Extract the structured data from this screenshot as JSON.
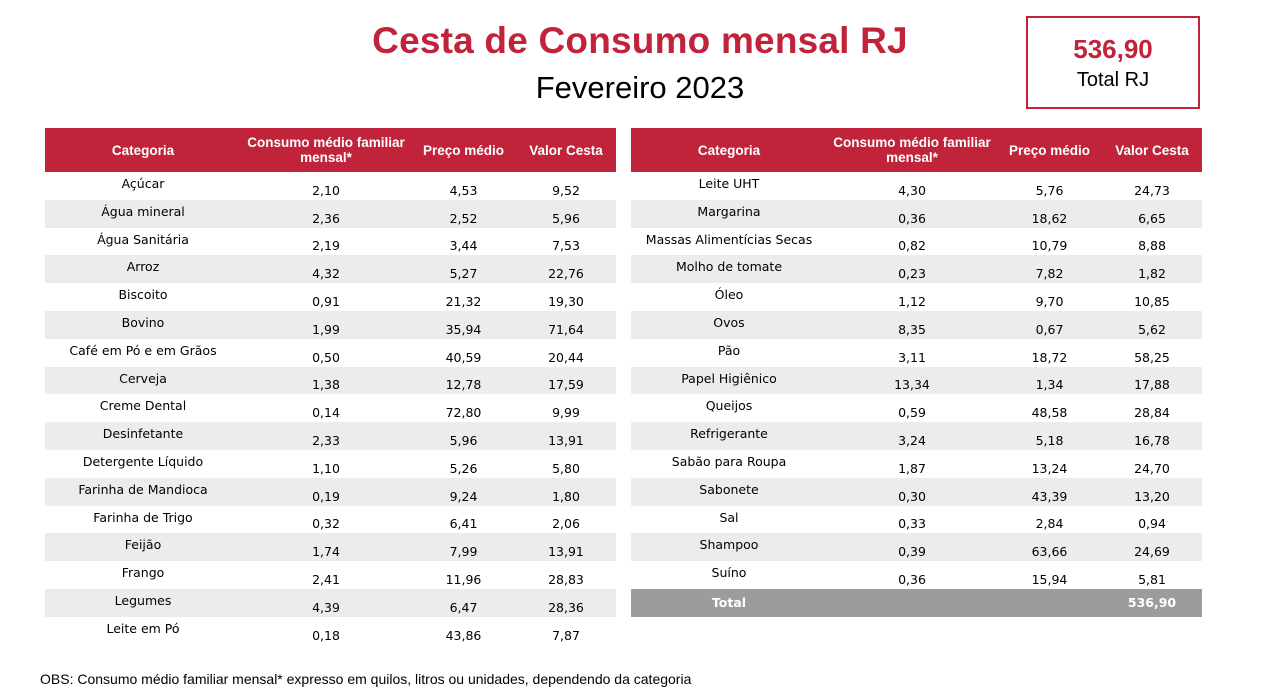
{
  "header": {
    "title": "Cesta de Consumo mensal RJ",
    "subtitle": "Fevereiro 2023"
  },
  "total_box": {
    "value": "536,90",
    "label": "Total RJ"
  },
  "columns": {
    "categoria": "Categoria",
    "consumo": "Consumo  médio familiar mensal*",
    "preco": "Preço médio",
    "valor": "Valor Cesta"
  },
  "left_table": [
    {
      "categoria": "Açúcar",
      "consumo": "2,10",
      "preco": "4,53",
      "valor": "9,52"
    },
    {
      "categoria": "Água mineral",
      "consumo": "2,36",
      "preco": "2,52",
      "valor": "5,96"
    },
    {
      "categoria": "Água Sanitária",
      "consumo": "2,19",
      "preco": "3,44",
      "valor": "7,53"
    },
    {
      "categoria": "Arroz",
      "consumo": "4,32",
      "preco": "5,27",
      "valor": "22,76"
    },
    {
      "categoria": "Biscoito",
      "consumo": "0,91",
      "preco": "21,32",
      "valor": "19,30"
    },
    {
      "categoria": "Bovino",
      "consumo": "1,99",
      "preco": "35,94",
      "valor": "71,64"
    },
    {
      "categoria": "Café em Pó e em Grãos",
      "consumo": "0,50",
      "preco": "40,59",
      "valor": "20,44"
    },
    {
      "categoria": "Cerveja",
      "consumo": "1,38",
      "preco": "12,78",
      "valor": "17,59"
    },
    {
      "categoria": "Creme Dental",
      "consumo": "0,14",
      "preco": "72,80",
      "valor": "9,99"
    },
    {
      "categoria": "Desinfetante",
      "consumo": "2,33",
      "preco": "5,96",
      "valor": "13,91"
    },
    {
      "categoria": "Detergente Líquido",
      "consumo": "1,10",
      "preco": "5,26",
      "valor": "5,80"
    },
    {
      "categoria": "Farinha de Mandioca",
      "consumo": "0,19",
      "preco": "9,24",
      "valor": "1,80"
    },
    {
      "categoria": "Farinha de Trigo",
      "consumo": "0,32",
      "preco": "6,41",
      "valor": "2,06"
    },
    {
      "categoria": "Feijão",
      "consumo": "1,74",
      "preco": "7,99",
      "valor": "13,91"
    },
    {
      "categoria": "Frango",
      "consumo": "2,41",
      "preco": "11,96",
      "valor": "28,83"
    },
    {
      "categoria": "Legumes",
      "consumo": "4,39",
      "preco": "6,47",
      "valor": "28,36"
    },
    {
      "categoria": "Leite em Pó",
      "consumo": "0,18",
      "preco": "43,86",
      "valor": "7,87"
    }
  ],
  "right_table": [
    {
      "categoria": "Leite UHT",
      "consumo": "4,30",
      "preco": "5,76",
      "valor": "24,73"
    },
    {
      "categoria": "Margarina",
      "consumo": "0,36",
      "preco": "18,62",
      "valor": "6,65"
    },
    {
      "categoria": "Massas Alimentícias Secas",
      "consumo": "0,82",
      "preco": "10,79",
      "valor": "8,88"
    },
    {
      "categoria": "Molho de tomate",
      "consumo": "0,23",
      "preco": "7,82",
      "valor": "1,82"
    },
    {
      "categoria": "Óleo",
      "consumo": "1,12",
      "preco": "9,70",
      "valor": "10,85"
    },
    {
      "categoria": "Ovos",
      "consumo": "8,35",
      "preco": "0,67",
      "valor": "5,62"
    },
    {
      "categoria": "Pão",
      "consumo": "3,11",
      "preco": "18,72",
      "valor": "58,25"
    },
    {
      "categoria": "Papel Higiênico",
      "consumo": "13,34",
      "preco": "1,34",
      "valor": "17,88"
    },
    {
      "categoria": "Queijos",
      "consumo": "0,59",
      "preco": "48,58",
      "valor": "28,84"
    },
    {
      "categoria": "Refrigerante",
      "consumo": "3,24",
      "preco": "5,18",
      "valor": "16,78"
    },
    {
      "categoria": "Sabão para Roupa",
      "consumo": "1,87",
      "preco": "13,24",
      "valor": "24,70"
    },
    {
      "categoria": "Sabonete",
      "consumo": "0,30",
      "preco": "43,39",
      "valor": "13,20"
    },
    {
      "categoria": "Sal",
      "consumo": "0,33",
      "preco": "2,84",
      "valor": "0,94"
    },
    {
      "categoria": "Shampoo",
      "consumo": "0,39",
      "preco": "63,66",
      "valor": "24,69"
    },
    {
      "categoria": "Suíno",
      "consumo": "0,36",
      "preco": "15,94",
      "valor": "5,81"
    }
  ],
  "total_row": {
    "label": "Total",
    "value": "536,90"
  },
  "footer": {
    "obs": "OBS: Consumo médio familiar mensal* expresso em quilos, litros ou unidades, dependendo da categoria"
  },
  "colors": {
    "accent": "#c0233a",
    "stripe": "#ececec",
    "total_row": "#9c9c9c"
  }
}
